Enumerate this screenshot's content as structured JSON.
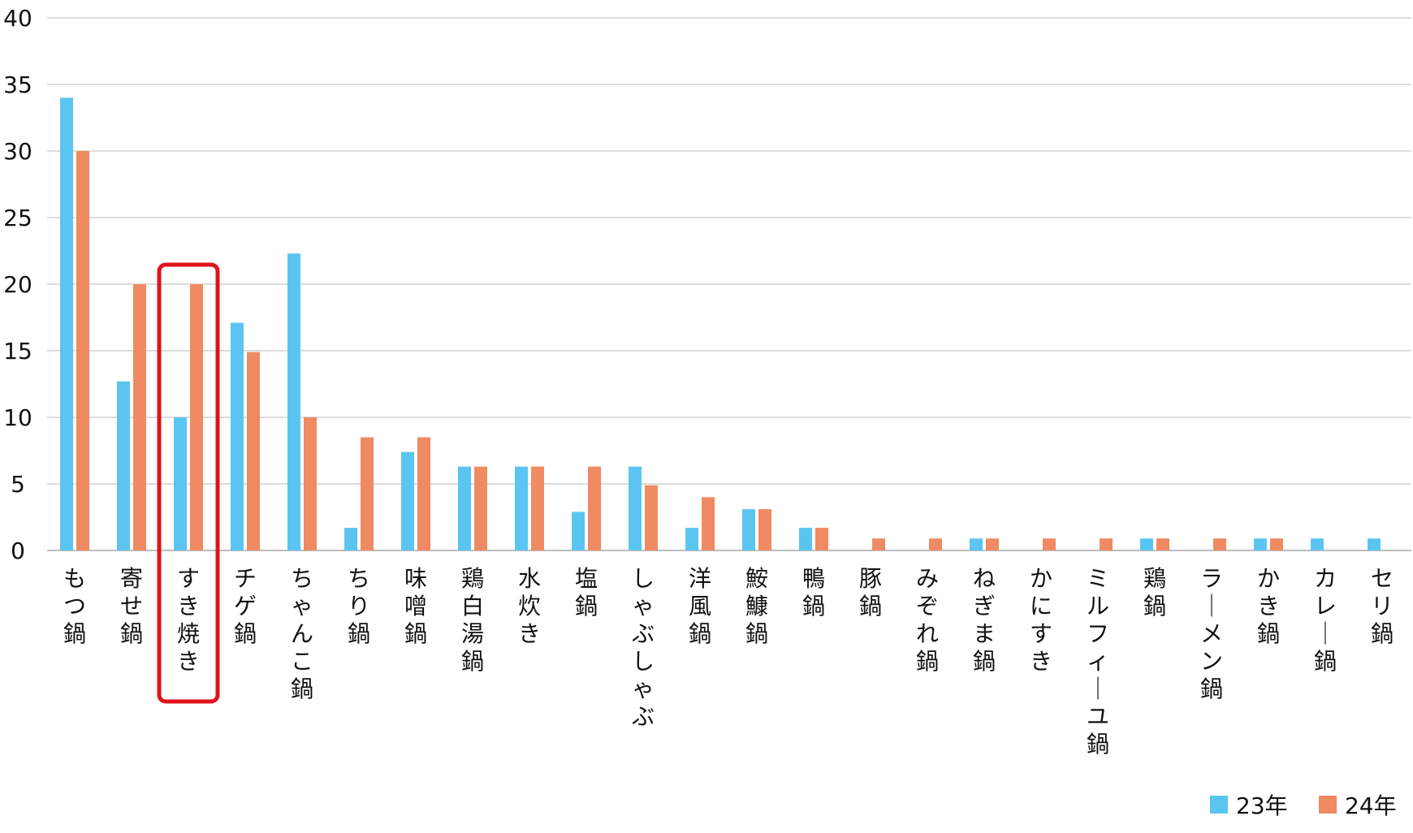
{
  "chart_data": {
    "type": "bar",
    "categories": [
      "もつ鍋",
      "寄せ鍋",
      "すき焼き",
      "チゲ鍋",
      "ちゃんこ鍋",
      "ちり鍋",
      "味噌鍋",
      "鶏白湯鍋",
      "水炊き",
      "塩鍋",
      "しゃぶしゃぶ",
      "洋風鍋",
      "鮟鱇鍋",
      "鴨鍋",
      "豚鍋",
      "みぞれ鍋",
      "ねぎま鍋",
      "かにすき",
      "ミルフィーユ鍋",
      "鶏鍋",
      "ラーメン鍋",
      "かき鍋",
      "カレー鍋",
      "セリ鍋"
    ],
    "series": [
      {
        "name": "23年",
        "values": [
          34,
          12.7,
          10,
          17.1,
          22.3,
          1.7,
          7.4,
          6.3,
          6.3,
          2.9,
          6.3,
          1.7,
          3.1,
          1.7,
          0,
          0,
          0.9,
          0,
          0,
          0.9,
          0,
          0.9,
          0.9,
          0.9
        ]
      },
      {
        "name": "24年",
        "values": [
          30,
          20,
          20,
          14.9,
          10,
          8.5,
          8.5,
          6.3,
          6.3,
          6.3,
          4.9,
          4,
          3.1,
          1.7,
          0.9,
          0.9,
          0.9,
          0.9,
          0.9,
          0.9,
          0.9,
          0.9,
          0,
          0
        ]
      }
    ],
    "ylim": [
      0,
      40
    ],
    "yticks": [
      0,
      5,
      10,
      15,
      20,
      25,
      30,
      35,
      40
    ],
    "grid": true,
    "legend_position": "bottom-right",
    "highlight_category": "すき焼き",
    "title": "",
    "xlabel": "",
    "ylabel": ""
  },
  "colors": {
    "series_23": "#5bc5f2",
    "series_24": "#ef8a62",
    "highlight_box": "#e0121b",
    "grid": "#d0d0d0"
  }
}
